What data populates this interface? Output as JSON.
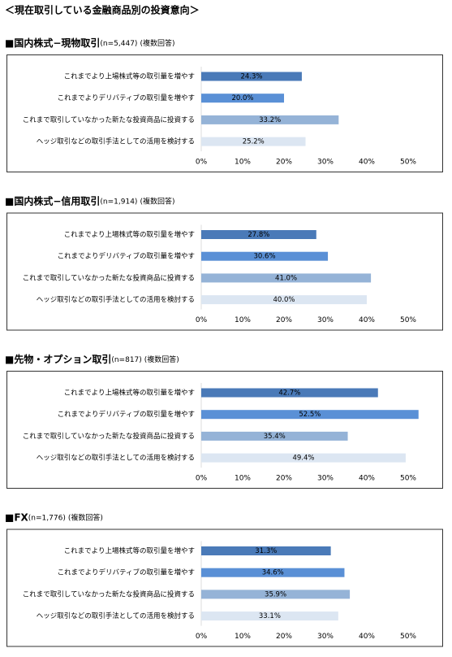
{
  "title": "＜現在取引している金融商品別の投資意向＞",
  "chart_data": [
    {
      "type": "barh",
      "title": "■国内株式−現物取引",
      "subtitle": "(n=5,447)",
      "note": "(複数回答)",
      "categories": [
        "これまでより上場株式等の取引量を増やす",
        "これまでよりデリバティブの取引量を増やす",
        "これまで取引していなかった新たな投資商品に投資する",
        "ヘッジ取引などの取引手法としての活用を検討する"
      ],
      "values": [
        24.3,
        20.0,
        33.2,
        25.2
      ],
      "value_labels": [
        "24.3%",
        "20.0%",
        "33.2%",
        "25.2%"
      ],
      "colors": [
        "#4a7ab8",
        "#5a90d6",
        "#95b3d7",
        "#dce6f2"
      ],
      "xlim": [
        0,
        55
      ],
      "xticks": [
        {
          "value": 0,
          "label": "0%"
        },
        {
          "value": 10,
          "label": "10%"
        },
        {
          "value": 20,
          "label": "20%"
        },
        {
          "value": 30,
          "label": "30%"
        },
        {
          "value": 40,
          "label": "40%"
        },
        {
          "value": 50,
          "label": "50%"
        }
      ]
    },
    {
      "type": "barh",
      "title": "■国内株式−信用取引",
      "subtitle": "(n=1,914)",
      "note": "(複数回答)",
      "categories": [
        "これまでより上場株式等の取引量を増やす",
        "これまでよりデリバティブの取引量を増やす",
        "これまで取引していなかった新たな投資商品に投資する",
        "ヘッジ取引などの取引手法としての活用を検討する"
      ],
      "values": [
        27.8,
        30.6,
        41.0,
        40.0
      ],
      "value_labels": [
        "27.8%",
        "30.6%",
        "41.0%",
        "40.0%"
      ],
      "colors": [
        "#4a7ab8",
        "#5a90d6",
        "#95b3d7",
        "#dce6f2"
      ],
      "xlim": [
        0,
        55
      ],
      "xticks": [
        {
          "value": 0,
          "label": "0%"
        },
        {
          "value": 10,
          "label": "10%"
        },
        {
          "value": 20,
          "label": "20%"
        },
        {
          "value": 30,
          "label": "30%"
        },
        {
          "value": 40,
          "label": "40%"
        },
        {
          "value": 50,
          "label": "50%"
        }
      ]
    },
    {
      "type": "barh",
      "title": "■先物・オプション取引",
      "subtitle": "(n=817)",
      "note": "(複数回答)",
      "categories": [
        "これまでより上場株式等の取引量を増やす",
        "これまでよりデリバティブの取引量を増やす",
        "これまで取引していなかった新たな投資商品に投資する",
        "ヘッジ取引などの取引手法としての活用を検討する"
      ],
      "values": [
        42.7,
        52.5,
        35.4,
        49.4
      ],
      "value_labels": [
        "42.7%",
        "52.5%",
        "35.4%",
        "49.4%"
      ],
      "colors": [
        "#4a7ab8",
        "#5a90d6",
        "#95b3d7",
        "#dce6f2"
      ],
      "xlim": [
        0,
        55
      ],
      "xticks": [
        {
          "value": 0,
          "label": "0%"
        },
        {
          "value": 10,
          "label": "10%"
        },
        {
          "value": 20,
          "label": "20%"
        },
        {
          "value": 30,
          "label": "30%"
        },
        {
          "value": 40,
          "label": "40%"
        },
        {
          "value": 50,
          "label": "50%"
        }
      ]
    },
    {
      "type": "barh",
      "title": "■FX",
      "subtitle": "(n=1,776)",
      "note": "(複数回答)",
      "categories": [
        "これまでより上場株式等の取引量を増やす",
        "これまでよりデリバティブの取引量を増やす",
        "これまで取引していなかった新たな投資商品に投資する",
        "ヘッジ取引などの取引手法としての活用を検討する"
      ],
      "values": [
        31.3,
        34.6,
        35.9,
        33.1
      ],
      "value_labels": [
        "31.3%",
        "34.6%",
        "35.9%",
        "33.1%"
      ],
      "colors": [
        "#4a7ab8",
        "#5a90d6",
        "#95b3d7",
        "#dce6f2"
      ],
      "xlim": [
        0,
        55
      ],
      "xticks": [
        {
          "value": 0,
          "label": "0%"
        },
        {
          "value": 10,
          "label": "10%"
        },
        {
          "value": 20,
          "label": "20%"
        },
        {
          "value": 30,
          "label": "30%"
        },
        {
          "value": 40,
          "label": "40%"
        },
        {
          "value": 50,
          "label": "50%"
        }
      ]
    }
  ]
}
